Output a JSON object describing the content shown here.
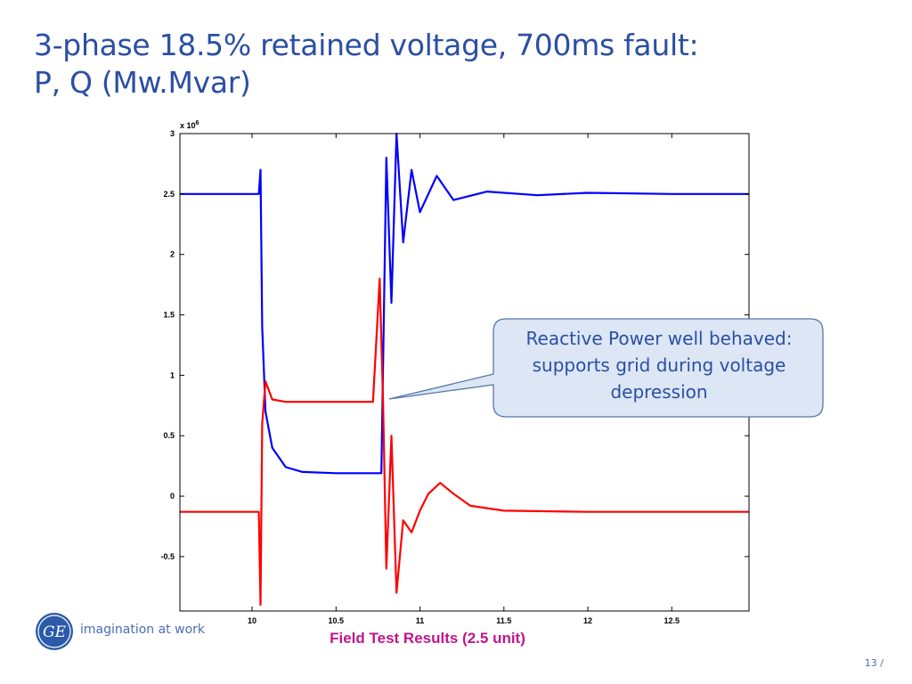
{
  "slide": {
    "title_line1": "3-phase 18.5% retained voltage, 700ms fault:",
    "title_line2": "P, Q (Mw.Mvar)",
    "caption": "Field Test Results (2.5 unit)",
    "page_number": "13 /"
  },
  "logo": {
    "tagline": "imagination at work",
    "monogram": "GE"
  },
  "callout": {
    "line1": "Reactive Power well behaved:",
    "line2": "supports grid during voltage",
    "line3": "depression"
  },
  "colors": {
    "title": "#2b4fa3",
    "caption": "#c0168c",
    "series_p": "#0000ff",
    "series_q": "#ff0000",
    "callout_fill": "#dce6f4",
    "callout_border": "#5577aa"
  },
  "chart_data": {
    "type": "line",
    "y_multiplier_label": "x 10",
    "y_multiplier_exponent": "6",
    "xlim": [
      9.57,
      12.96
    ],
    "ylim": [
      -0.95,
      3.0
    ],
    "x_ticks": [
      "10",
      "10.5",
      "11",
      "11.5",
      "12",
      "12.5"
    ],
    "y_ticks": [
      "3",
      "2.5",
      "2",
      "1.5",
      "1",
      "0.5",
      "0",
      "-0.5"
    ],
    "grid": false,
    "series": [
      {
        "color": "#0000ff",
        "x": [
          9.57,
          10.04,
          10.05,
          10.06,
          10.08,
          10.12,
          10.2,
          10.3,
          10.5,
          10.72,
          10.77,
          10.8,
          10.83,
          10.86,
          10.9,
          10.95,
          11.0,
          11.1,
          11.2,
          11.4,
          11.7,
          12.0,
          12.5,
          12.96
        ],
        "y": [
          2.5,
          2.5,
          2.7,
          1.4,
          0.7,
          0.4,
          0.24,
          0.2,
          0.19,
          0.19,
          0.19,
          2.8,
          1.6,
          3.0,
          2.1,
          2.7,
          2.35,
          2.65,
          2.45,
          2.52,
          2.49,
          2.51,
          2.5,
          2.5
        ]
      },
      {
        "color": "#ff0000",
        "x": [
          9.57,
          10.04,
          10.05,
          10.06,
          10.08,
          10.12,
          10.2,
          10.3,
          10.5,
          10.72,
          10.76,
          10.78,
          10.8,
          10.83,
          10.86,
          10.9,
          10.95,
          11.0,
          11.05,
          11.12,
          11.2,
          11.3,
          11.5,
          12.0,
          12.5,
          12.96
        ],
        "y": [
          -0.13,
          -0.13,
          -0.9,
          0.6,
          0.95,
          0.8,
          0.78,
          0.78,
          0.78,
          0.78,
          1.8,
          0.78,
          -0.6,
          0.5,
          -0.8,
          -0.2,
          -0.3,
          -0.12,
          0.02,
          0.11,
          0.02,
          -0.08,
          -0.12,
          -0.13,
          -0.13,
          -0.13
        ]
      }
    ]
  }
}
